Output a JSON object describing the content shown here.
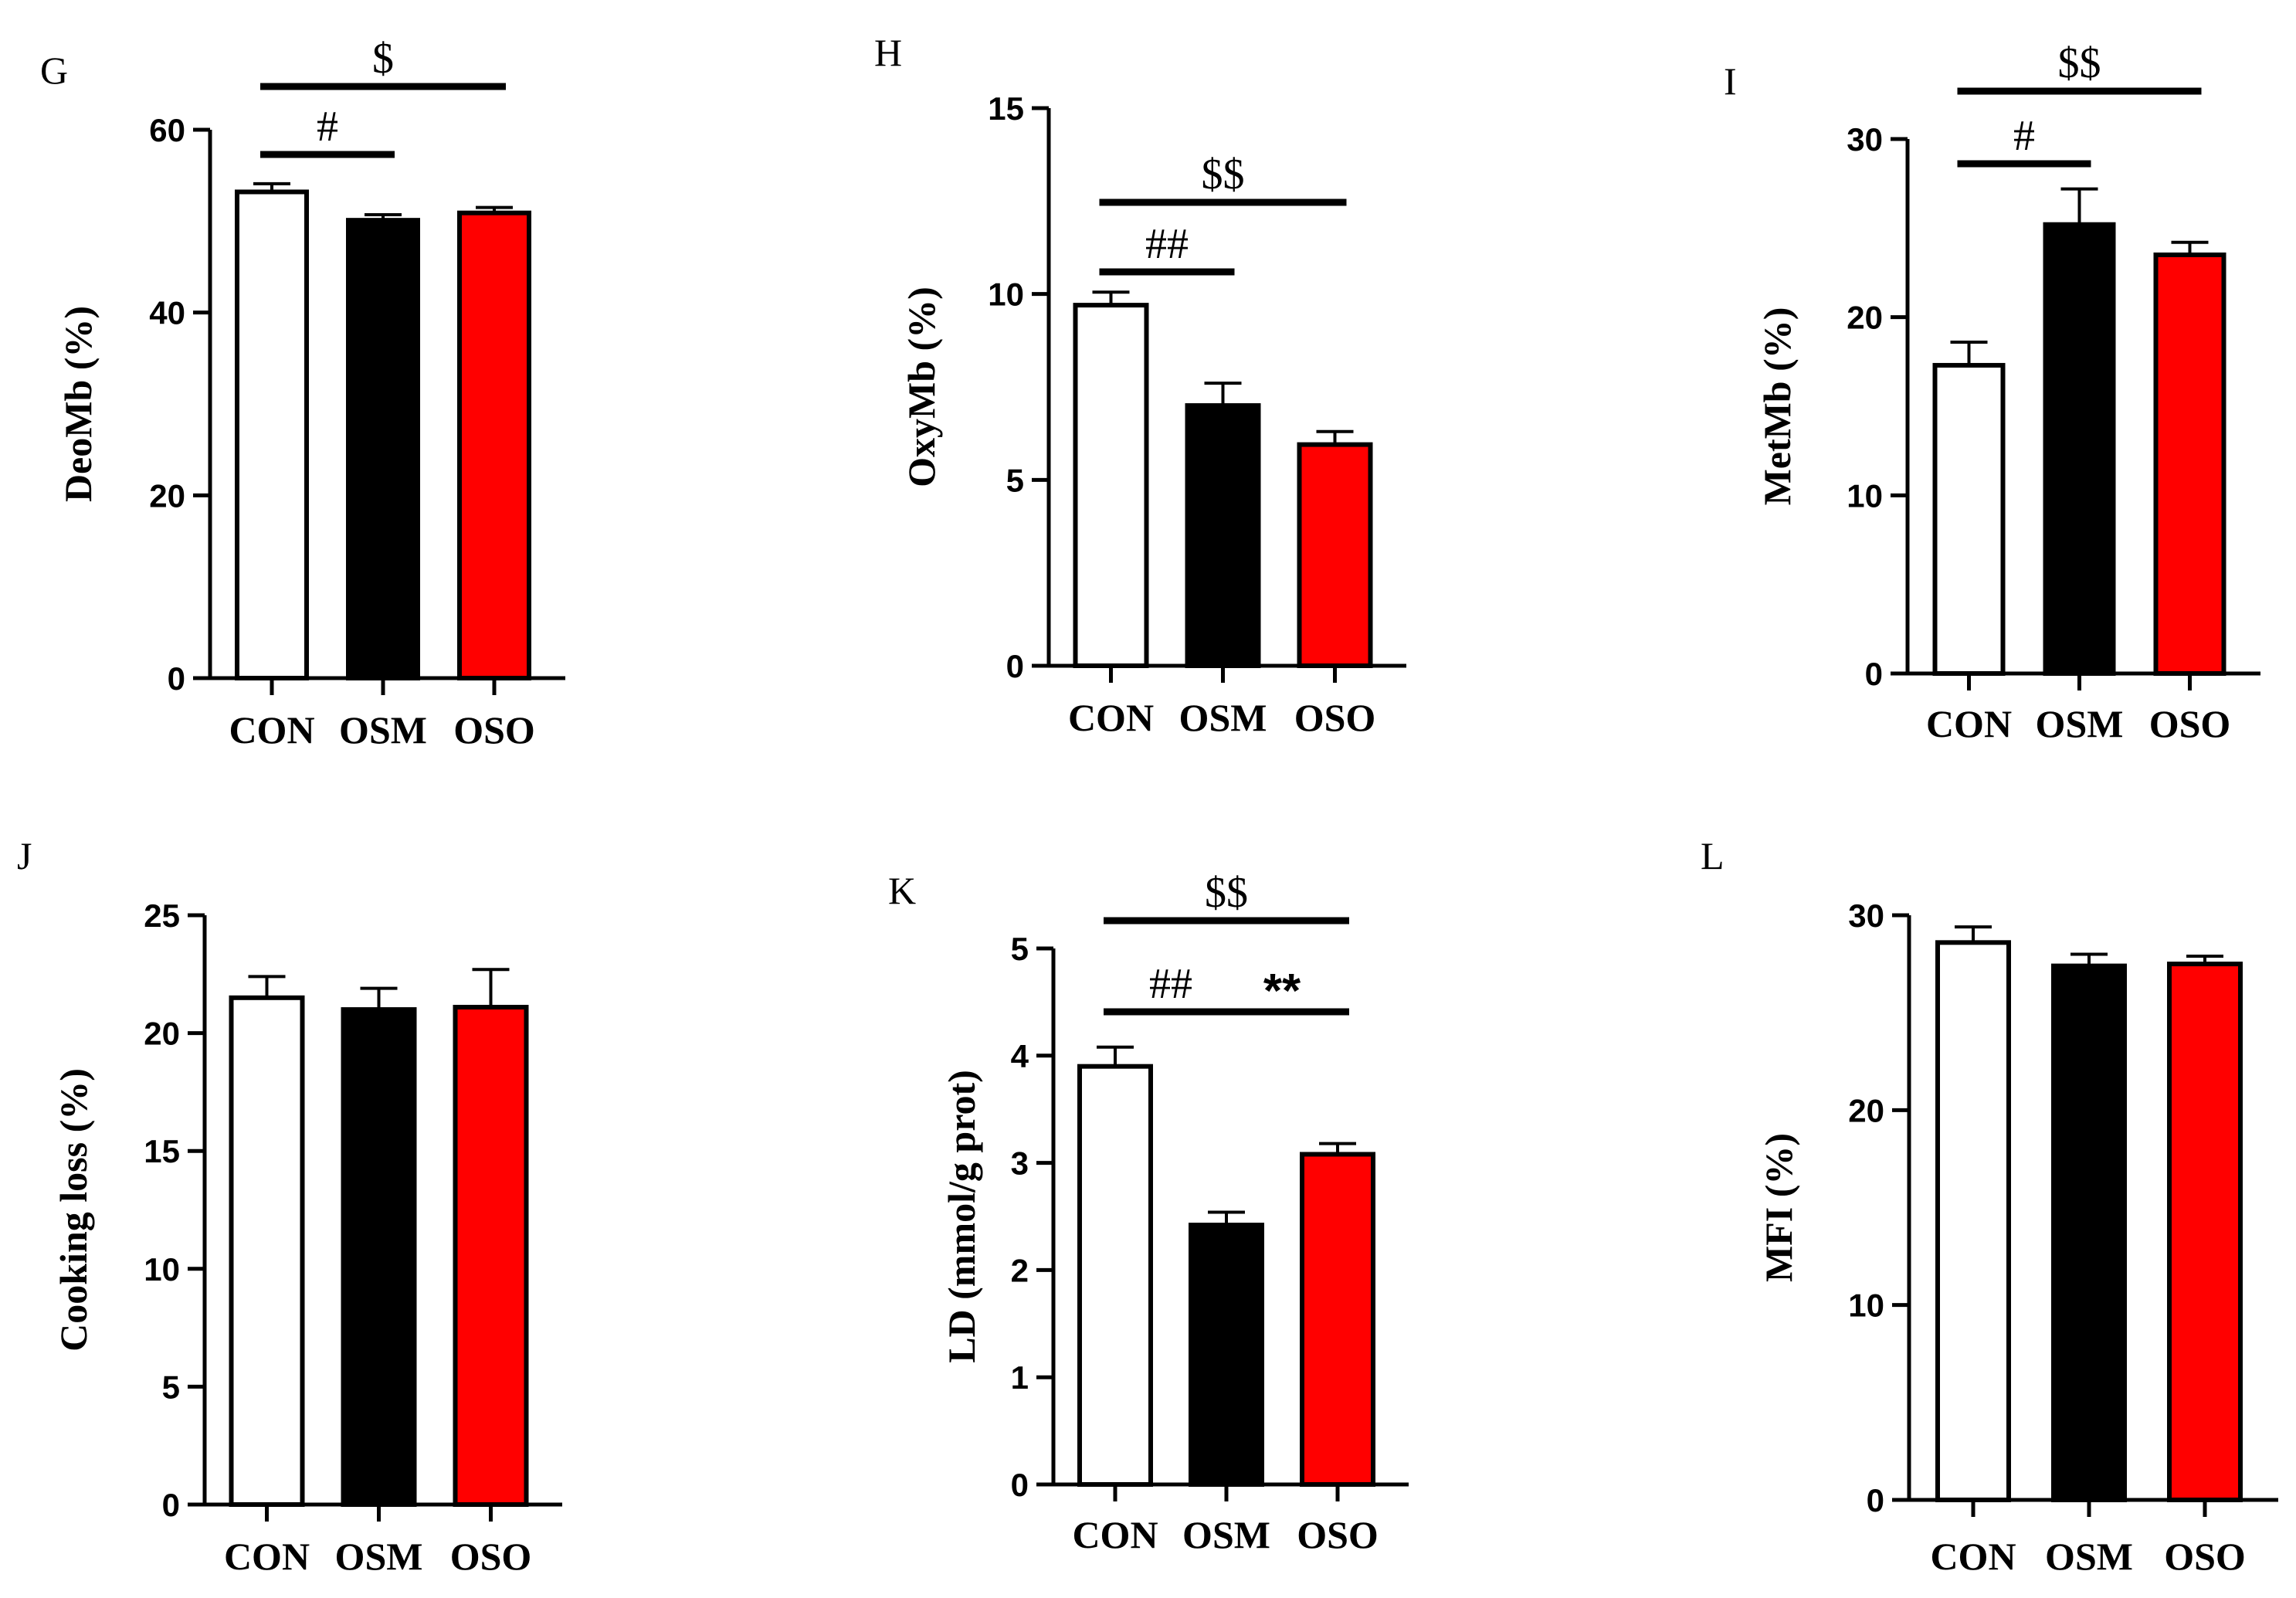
{
  "colors": {
    "CON": "#ffffff",
    "OSM": "#000000",
    "OSO": "#ff0000",
    "axis": "#000000"
  },
  "chart_data": [
    {
      "panel": "G",
      "type": "bar",
      "categories": [
        "CON",
        "OSM",
        "OSO"
      ],
      "values": [
        53.2,
        50.1,
        50.9
      ],
      "errors": [
        0.9,
        0.6,
        0.6
      ],
      "ylabel": "DeoMb (%)",
      "ylim": [
        0,
        60
      ],
      "yticks": [
        0,
        20,
        40,
        60
      ],
      "brackets": [
        {
          "from": 0,
          "to": 1,
          "label": "#",
          "level": 0
        },
        {
          "from": 0,
          "to": 2,
          "label": "$",
          "level": 1
        }
      ]
    },
    {
      "panel": "H",
      "type": "bar",
      "categories": [
        "CON",
        "OSM",
        "OSO"
      ],
      "values": [
        9.7,
        7.0,
        5.95
      ],
      "errors": [
        0.35,
        0.6,
        0.35
      ],
      "ylabel": "OxyMb (%)",
      "ylim": [
        0,
        15
      ],
      "yticks": [
        0,
        5,
        10,
        15
      ],
      "brackets": [
        {
          "from": 0,
          "to": 1,
          "label": "##",
          "level": 0
        },
        {
          "from": 0,
          "to": 2,
          "label": "$$",
          "level": 1
        }
      ]
    },
    {
      "panel": "I",
      "type": "bar",
      "categories": [
        "CON",
        "OSM",
        "OSO"
      ],
      "values": [
        17.3,
        25.2,
        23.5
      ],
      "errors": [
        1.3,
        2.0,
        0.7
      ],
      "ylabel": "MetMb (%)",
      "ylim": [
        0,
        30
      ],
      "yticks": [
        0,
        10,
        20,
        30
      ],
      "brackets": [
        {
          "from": 0,
          "to": 1,
          "label": "#",
          "level": 0
        },
        {
          "from": 0,
          "to": 2,
          "label": "$$",
          "level": 1
        }
      ]
    },
    {
      "panel": "J",
      "type": "bar",
      "categories": [
        "CON",
        "OSM",
        "OSO"
      ],
      "values": [
        21.5,
        21.0,
        21.1
      ],
      "errors": [
        0.9,
        0.9,
        1.6
      ],
      "ylabel": "Cooking loss (%)",
      "ylim": [
        0,
        25
      ],
      "yticks": [
        0,
        5,
        10,
        15,
        20,
        25
      ],
      "brackets": []
    },
    {
      "panel": "K",
      "type": "bar",
      "categories": [
        "CON",
        "OSM",
        "OSO"
      ],
      "values": [
        3.9,
        2.42,
        3.08
      ],
      "errors": [
        0.18,
        0.12,
        0.1
      ],
      "ylabel": "LD (mmol/g prot)",
      "ylim": [
        0,
        5
      ],
      "yticks": [
        0,
        1,
        2,
        3,
        4,
        5
      ],
      "brackets": [
        {
          "from": 0,
          "to": 1,
          "label": "##",
          "level": 0
        },
        {
          "from": 1,
          "to": 2,
          "label": "**",
          "level": 0
        },
        {
          "from": 0,
          "to": 2,
          "label": "$$",
          "level": 1
        }
      ]
    },
    {
      "panel": "L",
      "type": "bar",
      "categories": [
        "CON",
        "OSM",
        "OSO"
      ],
      "values": [
        28.6,
        27.4,
        27.5
      ],
      "errors": [
        0.8,
        0.6,
        0.4
      ],
      "ylabel": "MFI (%)",
      "ylim": [
        0,
        30
      ],
      "yticks": [
        0,
        10,
        20,
        30
      ],
      "brackets": []
    }
  ]
}
